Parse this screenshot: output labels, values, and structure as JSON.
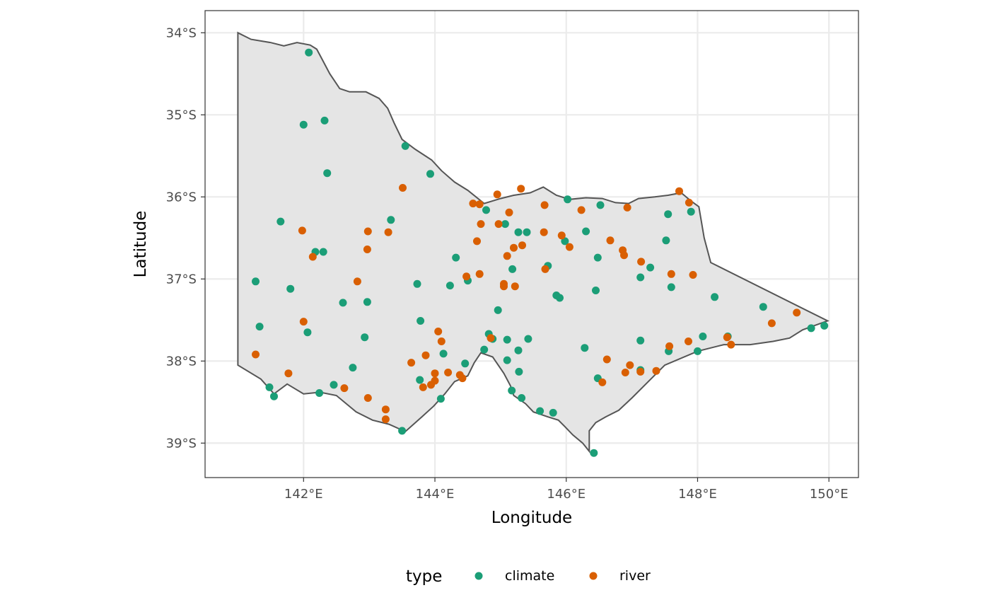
{
  "chart_data": {
    "type": "scatter",
    "xlabel": "Longitude",
    "ylabel": "Latitude",
    "xlim": [
      140.5,
      150.45
    ],
    "ylim": [
      -39.42,
      -33.73
    ],
    "x_ticks": [
      142,
      144,
      146,
      148,
      150
    ],
    "x_tick_labels": [
      "142°E",
      "144°E",
      "146°E",
      "148°E",
      "150°E"
    ],
    "y_ticks": [
      -34,
      -35,
      -36,
      -37,
      -38,
      -39
    ],
    "y_tick_labels": [
      "34°S",
      "35°S",
      "36°S",
      "37°S",
      "38°S",
      "39°S"
    ],
    "grid": true,
    "legend": {
      "title": "type",
      "position": "bottom",
      "entries": [
        "climate",
        "river"
      ]
    },
    "colors": {
      "climate": "#1b9e77",
      "river": "#d95f02",
      "land_fill": "#e5e5e5",
      "land_stroke": "#555555",
      "grid": "#ebebeb",
      "panel_border": "#333333"
    },
    "region_outline": [
      [
        141.0,
        -34.0
      ],
      [
        141.2,
        -34.08
      ],
      [
        141.5,
        -34.12
      ],
      [
        141.7,
        -34.16
      ],
      [
        141.9,
        -34.12
      ],
      [
        142.1,
        -34.15
      ],
      [
        142.2,
        -34.2
      ],
      [
        142.28,
        -34.32
      ],
      [
        142.4,
        -34.5
      ],
      [
        142.55,
        -34.68
      ],
      [
        142.7,
        -34.72
      ],
      [
        142.95,
        -34.72
      ],
      [
        143.15,
        -34.8
      ],
      [
        143.28,
        -34.92
      ],
      [
        143.38,
        -35.1
      ],
      [
        143.5,
        -35.3
      ],
      [
        143.7,
        -35.42
      ],
      [
        143.95,
        -35.55
      ],
      [
        144.1,
        -35.68
      ],
      [
        144.3,
        -35.82
      ],
      [
        144.5,
        -35.92
      ],
      [
        144.75,
        -36.08
      ],
      [
        145.0,
        -36.02
      ],
      [
        145.2,
        -35.98
      ],
      [
        145.45,
        -35.95
      ],
      [
        145.65,
        -35.88
      ],
      [
        145.85,
        -35.98
      ],
      [
        146.05,
        -36.03
      ],
      [
        146.3,
        -36.01
      ],
      [
        146.55,
        -36.02
      ],
      [
        146.75,
        -36.07
      ],
      [
        146.95,
        -36.08
      ],
      [
        147.1,
        -36.02
      ],
      [
        147.35,
        -36.0
      ],
      [
        147.55,
        -35.98
      ],
      [
        147.75,
        -35.95
      ],
      [
        147.9,
        -36.05
      ],
      [
        148.02,
        -36.12
      ],
      [
        148.1,
        -36.5
      ],
      [
        148.2,
        -36.8
      ],
      [
        149.98,
        -37.51
      ],
      [
        149.6,
        -37.62
      ],
      [
        149.4,
        -37.72
      ],
      [
        149.15,
        -37.76
      ],
      [
        148.8,
        -37.8
      ],
      [
        148.4,
        -37.8
      ],
      [
        148.0,
        -37.88
      ],
      [
        147.5,
        -38.05
      ],
      [
        147.25,
        -38.25
      ],
      [
        147.0,
        -38.45
      ],
      [
        146.8,
        -38.6
      ],
      [
        146.6,
        -38.68
      ],
      [
        146.45,
        -38.75
      ],
      [
        146.35,
        -38.85
      ],
      [
        146.35,
        -39.1
      ],
      [
        146.25,
        -39.0
      ],
      [
        146.1,
        -38.9
      ],
      [
        145.98,
        -38.8
      ],
      [
        145.88,
        -38.72
      ],
      [
        145.72,
        -38.68
      ],
      [
        145.5,
        -38.62
      ],
      [
        145.38,
        -38.52
      ],
      [
        145.2,
        -38.42
      ],
      [
        145.15,
        -38.3
      ],
      [
        145.05,
        -38.15
      ],
      [
        144.88,
        -37.95
      ],
      [
        144.7,
        -37.9
      ],
      [
        144.6,
        -38.02
      ],
      [
        144.5,
        -38.18
      ],
      [
        144.3,
        -38.25
      ],
      [
        144.15,
        -38.4
      ],
      [
        143.98,
        -38.55
      ],
      [
        143.8,
        -38.68
      ],
      [
        143.55,
        -38.86
      ],
      [
        143.3,
        -38.77
      ],
      [
        143.05,
        -38.72
      ],
      [
        142.8,
        -38.62
      ],
      [
        142.5,
        -38.42
      ],
      [
        142.25,
        -38.38
      ],
      [
        142.0,
        -38.4
      ],
      [
        141.75,
        -38.28
      ],
      [
        141.55,
        -38.4
      ],
      [
        141.35,
        -38.22
      ],
      [
        141.0,
        -38.05
      ]
    ],
    "series": [
      {
        "name": "climate",
        "points": [
          [
            142.08,
            -34.24
          ],
          [
            142.0,
            -35.12
          ],
          [
            142.32,
            -35.07
          ],
          [
            143.55,
            -35.38
          ],
          [
            142.36,
            -35.71
          ],
          [
            143.93,
            -35.72
          ],
          [
            146.02,
            -36.03
          ],
          [
            146.52,
            -36.1
          ],
          [
            144.78,
            -36.16
          ],
          [
            147.55,
            -36.21
          ],
          [
            147.9,
            -36.18
          ],
          [
            141.65,
            -36.3
          ],
          [
            143.33,
            -36.28
          ],
          [
            145.07,
            -36.33
          ],
          [
            145.27,
            -36.43
          ],
          [
            145.4,
            -36.43
          ],
          [
            146.3,
            -36.42
          ],
          [
            142.18,
            -36.67
          ],
          [
            142.3,
            -36.67
          ],
          [
            145.98,
            -36.54
          ],
          [
            147.52,
            -36.53
          ],
          [
            144.32,
            -36.74
          ],
          [
            146.48,
            -36.74
          ],
          [
            145.72,
            -36.84
          ],
          [
            145.18,
            -36.88
          ],
          [
            147.28,
            -36.86
          ],
          [
            147.13,
            -36.98
          ],
          [
            141.27,
            -37.03
          ],
          [
            144.5,
            -37.02
          ],
          [
            143.73,
            -37.06
          ],
          [
            144.23,
            -37.08
          ],
          [
            141.8,
            -37.12
          ],
          [
            147.6,
            -37.1
          ],
          [
            146.45,
            -37.14
          ],
          [
            145.85,
            -37.2
          ],
          [
            145.9,
            -37.23
          ],
          [
            148.26,
            -37.22
          ],
          [
            142.6,
            -37.29
          ],
          [
            142.97,
            -37.28
          ],
          [
            149.0,
            -37.34
          ],
          [
            144.96,
            -37.38
          ],
          [
            141.33,
            -37.58
          ],
          [
            143.78,
            -37.51
          ],
          [
            142.06,
            -37.65
          ],
          [
            144.82,
            -37.67
          ],
          [
            148.46,
            -37.7
          ],
          [
            148.08,
            -37.7
          ],
          [
            142.93,
            -37.71
          ],
          [
            144.88,
            -37.73
          ],
          [
            145.1,
            -37.74
          ],
          [
            145.42,
            -37.73
          ],
          [
            147.13,
            -37.75
          ],
          [
            149.73,
            -37.6
          ],
          [
            149.93,
            -37.57
          ],
          [
            144.75,
            -37.86
          ],
          [
            145.27,
            -37.87
          ],
          [
            147.56,
            -37.88
          ],
          [
            148.0,
            -37.88
          ],
          [
            144.13,
            -37.91
          ],
          [
            145.1,
            -37.99
          ],
          [
            144.46,
            -38.03
          ],
          [
            142.75,
            -38.08
          ],
          [
            147.13,
            -38.11
          ],
          [
            145.28,
            -38.13
          ],
          [
            146.28,
            -37.84
          ],
          [
            141.48,
            -38.32
          ],
          [
            141.55,
            -38.43
          ],
          [
            142.46,
            -38.29
          ],
          [
            142.24,
            -38.39
          ],
          [
            143.77,
            -38.23
          ],
          [
            145.17,
            -38.36
          ],
          [
            144.09,
            -38.46
          ],
          [
            145.32,
            -38.45
          ],
          [
            146.48,
            -38.21
          ],
          [
            145.6,
            -38.61
          ],
          [
            145.8,
            -38.63
          ],
          [
            143.5,
            -38.85
          ],
          [
            146.42,
            -39.12
          ]
        ]
      },
      {
        "name": "river",
        "points": [
          [
            143.51,
            -35.89
          ],
          [
            145.31,
            -35.9
          ],
          [
            147.72,
            -35.93
          ],
          [
            144.95,
            -35.97
          ],
          [
            147.87,
            -36.07
          ],
          [
            144.58,
            -36.08
          ],
          [
            144.68,
            -36.09
          ],
          [
            145.67,
            -36.1
          ],
          [
            146.93,
            -36.13
          ],
          [
            145.13,
            -36.19
          ],
          [
            146.23,
            -36.16
          ],
          [
            144.7,
            -36.33
          ],
          [
            144.97,
            -36.33
          ],
          [
            141.98,
            -36.41
          ],
          [
            142.98,
            -36.42
          ],
          [
            143.29,
            -36.43
          ],
          [
            145.66,
            -36.43
          ],
          [
            145.93,
            -36.47
          ],
          [
            146.67,
            -36.53
          ],
          [
            144.64,
            -36.54
          ],
          [
            145.33,
            -36.59
          ],
          [
            145.2,
            -36.62
          ],
          [
            146.05,
            -36.61
          ],
          [
            142.97,
            -36.64
          ],
          [
            146.86,
            -36.65
          ],
          [
            142.14,
            -36.73
          ],
          [
            145.1,
            -36.72
          ],
          [
            146.88,
            -36.71
          ],
          [
            147.14,
            -36.79
          ],
          [
            145.68,
            -36.88
          ],
          [
            147.6,
            -36.94
          ],
          [
            147.93,
            -36.95
          ],
          [
            144.68,
            -36.94
          ],
          [
            144.48,
            -36.97
          ],
          [
            142.82,
            -37.03
          ],
          [
            145.05,
            -37.06
          ],
          [
            145.05,
            -37.09
          ],
          [
            145.22,
            -37.09
          ],
          [
            149.51,
            -37.41
          ],
          [
            142.0,
            -37.52
          ],
          [
            149.13,
            -37.54
          ],
          [
            144.05,
            -37.64
          ],
          [
            144.1,
            -37.76
          ],
          [
            147.86,
            -37.76
          ],
          [
            148.45,
            -37.71
          ],
          [
            144.85,
            -37.72
          ],
          [
            148.51,
            -37.8
          ],
          [
            147.57,
            -37.82
          ],
          [
            143.86,
            -37.93
          ],
          [
            141.27,
            -37.92
          ],
          [
            146.62,
            -37.98
          ],
          [
            143.64,
            -38.02
          ],
          [
            146.97,
            -38.05
          ],
          [
            147.13,
            -38.13
          ],
          [
            147.37,
            -38.12
          ],
          [
            146.9,
            -38.14
          ],
          [
            141.77,
            -38.15
          ],
          [
            144.0,
            -38.15
          ],
          [
            144.2,
            -38.14
          ],
          [
            144.38,
            -38.17
          ],
          [
            144.42,
            -38.21
          ],
          [
            144.0,
            -38.24
          ],
          [
            146.55,
            -38.26
          ],
          [
            143.94,
            -38.29
          ],
          [
            143.82,
            -38.32
          ],
          [
            142.62,
            -38.33
          ],
          [
            142.98,
            -38.45
          ],
          [
            143.25,
            -38.59
          ],
          [
            143.25,
            -38.71
          ]
        ]
      }
    ]
  }
}
